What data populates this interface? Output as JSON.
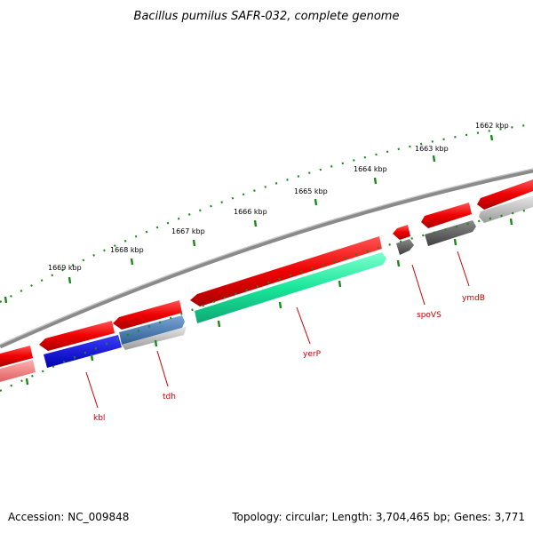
{
  "title": "Bacillus pumilus SAFR-032, complete genome",
  "footer": {
    "accession": "Accession: NC_009848",
    "summary": "Topology: circular; Length: 3,704,465 bp; Genes: 3,771"
  },
  "colors": {
    "forward_cds": "#ff0000",
    "reverse_cds": "#0000ee",
    "rna": "#19e69a",
    "other_gene": "#606060",
    "backbone": "#7a7a7a",
    "ticks": "#1a8a1a",
    "gene_label": "#cc0000"
  },
  "scale": {
    "unit": "kbp",
    "tick_labels": [
      "1662 kbp",
      "1663 kbp",
      "1664 kbp",
      "1665 kbp",
      "1666 kbp",
      "1667 kbp",
      "1668 kbp",
      "1669 kbp"
    ]
  },
  "gene_labels": [
    "ymdB",
    "spoVS",
    "yerP",
    "tdh",
    "kbl"
  ]
}
